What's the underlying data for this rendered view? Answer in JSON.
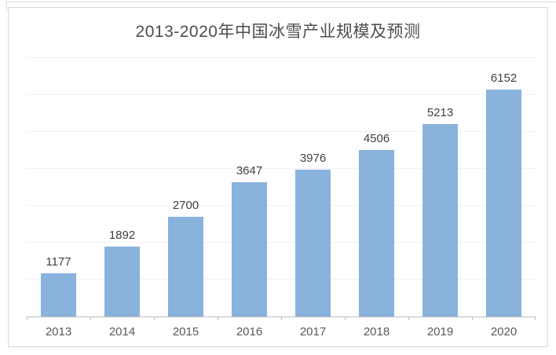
{
  "chart_data": {
    "type": "bar",
    "title": "2013-2020年中国冰雪产业规模及预测",
    "categories": [
      "2013",
      "2014",
      "2015",
      "2016",
      "2017",
      "2018",
      "2019",
      "2020"
    ],
    "values": [
      1177,
      1892,
      2700,
      3647,
      3976,
      4506,
      5213,
      6152
    ],
    "xlabel": "",
    "ylabel": "",
    "ylim": [
      0,
      7000
    ],
    "gridline_interval": 1000,
    "grid": "horizontal",
    "legend": "none",
    "data_labels": "above-bars",
    "colors": {
      "bar": "#89B2DD",
      "title_text": "#4d4d4d",
      "value_label_text": "#404040",
      "axis_label_text": "#595959",
      "gridline": "#f1f1f1",
      "axis_line": "#bfbfbf",
      "frame_border": "#d9d9d9",
      "background": "#ffffff"
    }
  }
}
